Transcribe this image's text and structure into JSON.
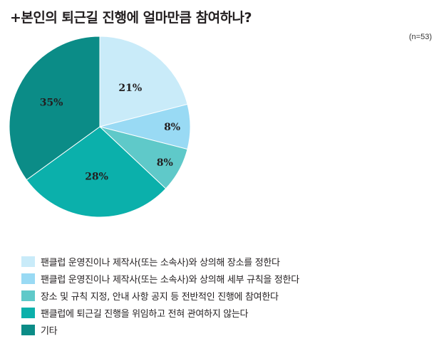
{
  "title": "+본인의 퇴근길 진행에 얼마만큼 참여하나?",
  "note": "(n=53)",
  "chart_data": {
    "type": "pie",
    "slices": [
      {
        "label": "팬클럽 운영진이나 제작사(또는 소속사)와 상의해 장소를 정한다",
        "value": 21,
        "display": "21%",
        "color": "#c9ebf9"
      },
      {
        "label": "팬클럽 운영진이나 제작사(또는 소속사)와 상의해 세부 규칙을 정한다",
        "value": 8,
        "display": "8%",
        "color": "#99daf4"
      },
      {
        "label": "장소 및 규칙 지정, 안내 사항 공지 등 전반적인 진행에 참여한다",
        "value": 8,
        "display": "8%",
        "color": "#5fc9c9"
      },
      {
        "label": "팬클럽에 퇴근길 진행을 위임하고 전혀 관여하지 않는다",
        "value": 28,
        "display": "28%",
        "color": "#0bb0ab"
      },
      {
        "label": "기타",
        "value": 35,
        "display": "35%",
        "color": "#0b8c87"
      }
    ],
    "start_angle_deg": 0,
    "direction": "clockwise"
  }
}
